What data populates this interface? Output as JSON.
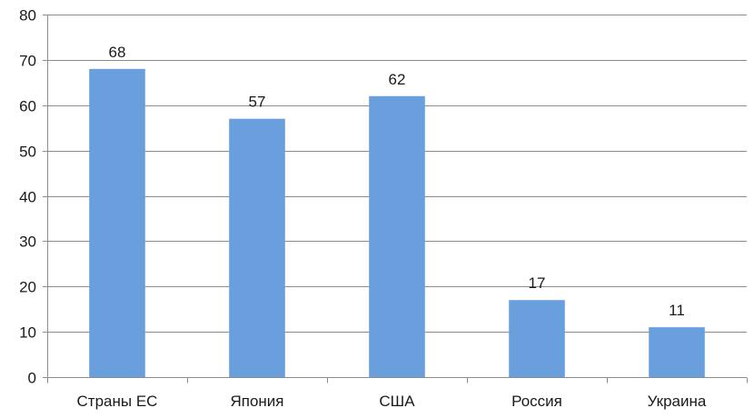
{
  "chart_data": {
    "type": "bar",
    "categories": [
      "Страны ЕС",
      "Япония",
      "США",
      "Россия",
      "Украина"
    ],
    "values": [
      68,
      57,
      62,
      17,
      11
    ],
    "data_labels": [
      "68",
      "57",
      "62",
      "17",
      "11"
    ],
    "title": "",
    "xlabel": "",
    "ylabel": "",
    "ylim": [
      0,
      80
    ],
    "yticks": [
      0,
      10,
      20,
      30,
      40,
      50,
      60,
      70,
      80
    ],
    "grid": true,
    "legend": "none",
    "bar_color": "#6a9fdd",
    "grid_color": "#8c8c8c"
  }
}
